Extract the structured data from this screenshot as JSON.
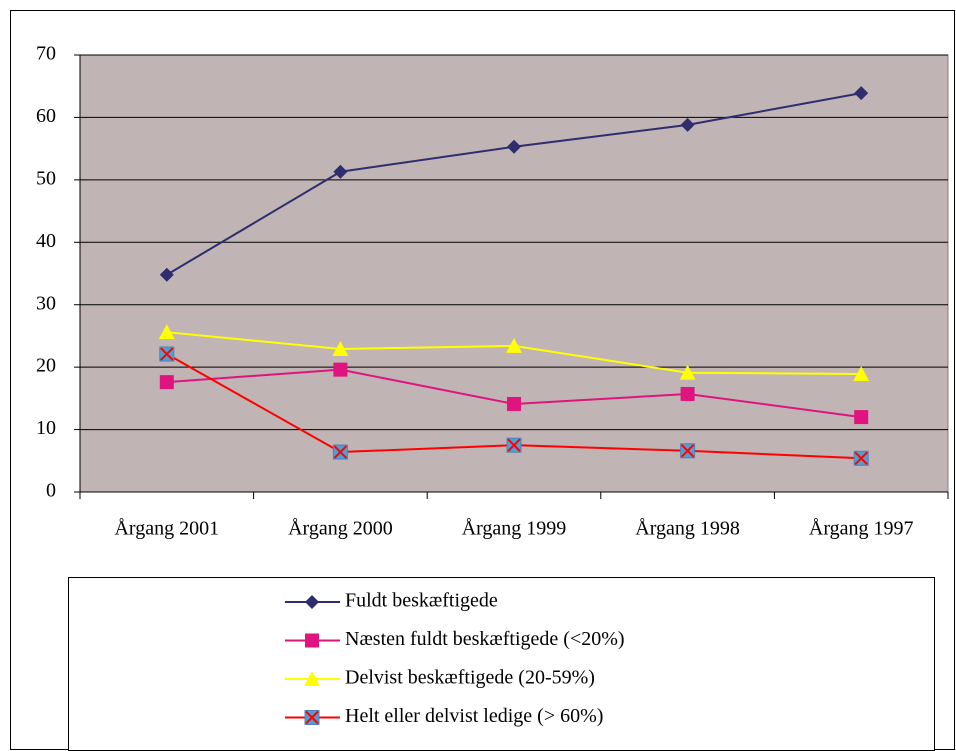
{
  "chart_data": {
    "type": "line",
    "categories": [
      "Årgang 2001",
      "Årgang 2000",
      "Årgang 1999",
      "Årgang 1998",
      "Årgang 1997"
    ],
    "series": [
      {
        "name": "Fuldt beskæftigede",
        "color": "#2e2e6e",
        "marker": "diamond",
        "values": [
          34.8,
          51.3,
          55.3,
          58.8,
          63.9
        ]
      },
      {
        "name": "Næsten fuldt beskæftigede (<20%)",
        "color": "#e0147f",
        "marker": "square",
        "values": [
          17.6,
          19.6,
          14.1,
          15.7,
          12.0
        ]
      },
      {
        "name": "Delvist beskæftigede (20-59%)",
        "color": "#ffff00",
        "marker": "triangle",
        "values": [
          25.6,
          22.9,
          23.4,
          19.1,
          18.9
        ]
      },
      {
        "name": "Helt eller delvist ledige (> 60%)",
        "color": "#ff0000",
        "marker": "xsquare",
        "values": [
          22.1,
          6.4,
          7.5,
          6.6,
          5.4
        ]
      }
    ],
    "ylim": [
      0,
      70
    ],
    "yticks": [
      0,
      10,
      20,
      30,
      40,
      50,
      60,
      70
    ],
    "grid": true,
    "legend": "bottom",
    "plot_background": "#c0b4b4"
  }
}
